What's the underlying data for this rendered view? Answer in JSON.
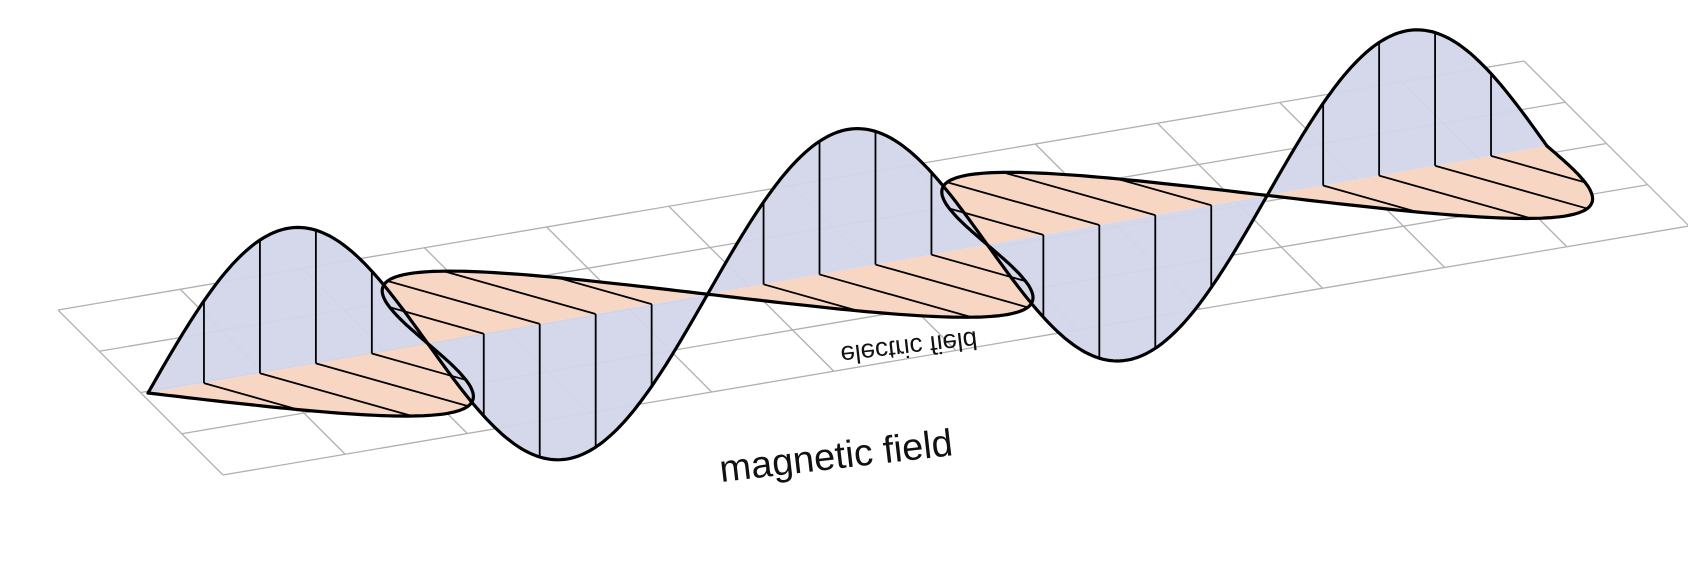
{
  "labels": {
    "magnetic": "magnetic field",
    "electric": "electric field"
  },
  "colors": {
    "electric_fill": "#d3d6ea",
    "magnetic_fill": "#f8d6c4",
    "grid": "#b0b0b0",
    "curve": "#000000"
  }
}
